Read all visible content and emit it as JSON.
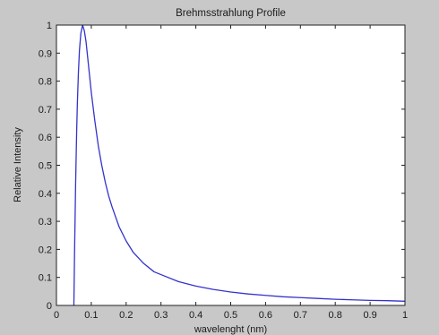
{
  "figure": {
    "background_color": "#c8c8c8",
    "axes_color": "#ffffff",
    "line_color": "#3333cc"
  },
  "chart_data": {
    "type": "line",
    "title": "Brehmsstrahlung Profile",
    "xlabel": "wavelenght (nm)",
    "ylabel": "Relative Intensity",
    "xlim": [
      0,
      1
    ],
    "ylim": [
      0,
      1
    ],
    "grid": false,
    "xticks": [
      "0",
      "0.1",
      "0.2",
      "0.3",
      "0.4",
      "0.5",
      "0.6",
      "0.7",
      "0.8",
      "0.9",
      "1"
    ],
    "yticks": [
      "0",
      "0.1",
      "0.2",
      "0.3",
      "0.4",
      "0.5",
      "0.6",
      "0.7",
      "0.8",
      "0.9",
      "1"
    ],
    "series": [
      {
        "x": [
          0.05,
          0.052,
          0.055,
          0.058,
          0.06,
          0.063,
          0.066,
          0.07,
          0.075,
          0.08,
          0.085,
          0.09,
          0.095,
          0.1,
          0.11,
          0.12,
          0.13,
          0.14,
          0.15,
          0.16,
          0.17,
          0.18,
          0.2,
          0.22,
          0.25,
          0.28,
          0.3,
          0.35,
          0.4,
          0.45,
          0.5,
          0.55,
          0.6,
          0.65,
          0.7,
          0.75,
          0.8,
          0.85,
          0.9,
          0.95,
          1.0
        ],
        "y": [
          0.0,
          0.19,
          0.43,
          0.62,
          0.72,
          0.83,
          0.91,
          0.97,
          1.0,
          0.98,
          0.94,
          0.88,
          0.82,
          0.76,
          0.66,
          0.57,
          0.5,
          0.44,
          0.39,
          0.35,
          0.315,
          0.28,
          0.23,
          0.19,
          0.15,
          0.12,
          0.11,
          0.085,
          0.069,
          0.057,
          0.048,
          0.041,
          0.036,
          0.031,
          0.028,
          0.025,
          0.022,
          0.02,
          0.018,
          0.017,
          0.015
        ]
      }
    ]
  }
}
